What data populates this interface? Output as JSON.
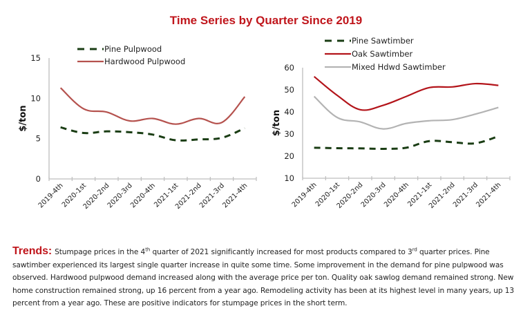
{
  "page": {
    "title": "Time Series by Quarter Since 2019"
  },
  "chart_data": [
    {
      "type": "line",
      "title": "",
      "xlabel": "",
      "ylabel": "$/ton",
      "ylim": [
        0,
        15
      ],
      "yticks": [
        0,
        5,
        10,
        15
      ],
      "grid": false,
      "legend_position": "top",
      "categories": [
        "2019-4th",
        "2020-1st",
        "2020-2nd",
        "2020-3rd",
        "2020-4th",
        "2021-1st",
        "2021-2nd",
        "2021-3rd",
        "2021-4th"
      ],
      "series": [
        {
          "name": "Pine Pulpwood",
          "color": "#1a3d14",
          "style": "dashed",
          "values": [
            6.4,
            5.7,
            5.9,
            5.8,
            5.5,
            4.8,
            4.9,
            5.1,
            6.3
          ]
        },
        {
          "name": "Hardwood Pulpwood",
          "color": "#b5524e",
          "style": "solid",
          "values": [
            11.3,
            8.7,
            8.3,
            7.2,
            7.5,
            6.8,
            7.5,
            7.0,
            10.2
          ]
        }
      ]
    },
    {
      "type": "line",
      "title": "",
      "xlabel": "",
      "ylabel": "$/ton",
      "ylim": [
        10,
        60
      ],
      "yticks": [
        10,
        20,
        30,
        40,
        50,
        60
      ],
      "grid": false,
      "legend_position": "top",
      "categories": [
        "2019-4th",
        "2020-1st",
        "2020-2nd",
        "2020-3rd",
        "2020-4th",
        "2021-1st",
        "2021-2nd",
        "2021-3rd",
        "2021-4th"
      ],
      "series": [
        {
          "name": "Pine Sawtimber",
          "color": "#1a3d14",
          "style": "dashed",
          "values": [
            23.8,
            23.6,
            23.5,
            23.3,
            23.8,
            26.8,
            26.3,
            25.8,
            29.0
          ]
        },
        {
          "name": "Oak Sawtimber",
          "color": "#b3141a",
          "style": "solid",
          "values": [
            56.0,
            47.5,
            41.0,
            43.0,
            47.0,
            51.0,
            51.3,
            52.8,
            52.0
          ]
        },
        {
          "name": "Mixed Hdwd Sawtimber",
          "color": "#b3b3b3",
          "style": "solid",
          "values": [
            47.0,
            37.5,
            35.5,
            32.3,
            34.8,
            36.0,
            36.5,
            39.0,
            42.0
          ]
        }
      ]
    }
  ],
  "trends": {
    "label": "Trends:",
    "text_1": "Stumpage prices in the 4",
    "sup_1": "th",
    "text_2": " quarter of 2021 significantly increased for most products compared to 3",
    "sup_2": "rd",
    "text_3": " quarter prices. Pine sawtimber experienced its largest single quarter increase in quite some time. Some improvement in the demand for pine pulpwood was observed. Hardwood pulpwood demand increased along with the average price per ton. Quality oak sawlog demand remained strong. New home construction remained strong, up 16 percent from a year ago. Remodeling activity has been at its highest level in many years, up 13 percent from a year ago. These are positive indicators for stumpage prices in the short term."
  }
}
